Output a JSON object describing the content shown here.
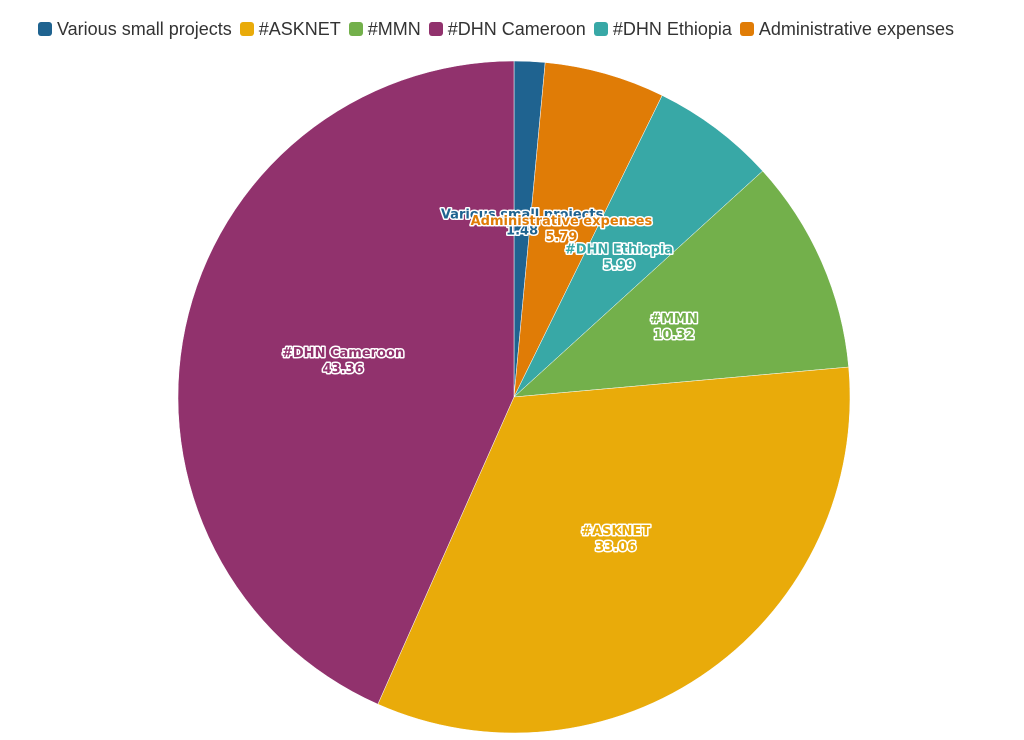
{
  "colors": {
    "various": "#1f6390",
    "asknet": "#e9ab0a",
    "mmn": "#73b04b",
    "dhn_cameroon": "#91326d",
    "dhn_ethiopia": "#38a8a6",
    "admin": "#e07c06"
  },
  "chart_data": {
    "type": "pie",
    "title": "",
    "legend_position": "top",
    "slices": [
      {
        "label": "Various small projects",
        "value": 1.48,
        "value_label": "1.48",
        "color": "#1f6390"
      },
      {
        "label": "Administrative expenses",
        "value": 5.79,
        "value_label": "5.79",
        "color": "#e07c06"
      },
      {
        "label": "#DHN Ethiopia",
        "value": 5.99,
        "value_label": "5.99",
        "color": "#38a8a6"
      },
      {
        "label": "#MMN",
        "value": 10.32,
        "value_label": "10.32",
        "color": "#73b04b"
      },
      {
        "label": "#ASKNET",
        "value": 33.06,
        "value_label": "33.06",
        "color": "#e9ab0a"
      },
      {
        "label": "#DHN Cameroon",
        "value": 43.36,
        "value_label": "43.36",
        "color": "#91326d"
      }
    ],
    "legend": [
      {
        "label": "Various small projects",
        "color": "#1f6390"
      },
      {
        "label": "#ASKNET",
        "color": "#e9ab0a"
      },
      {
        "label": "#MMN",
        "color": "#73b04b"
      },
      {
        "label": "#DHN Cameroon",
        "color": "#91326d"
      },
      {
        "label": "#DHN Ethiopia",
        "color": "#38a8a6"
      },
      {
        "label": "Administrative expenses",
        "color": "#e07c06"
      }
    ]
  }
}
